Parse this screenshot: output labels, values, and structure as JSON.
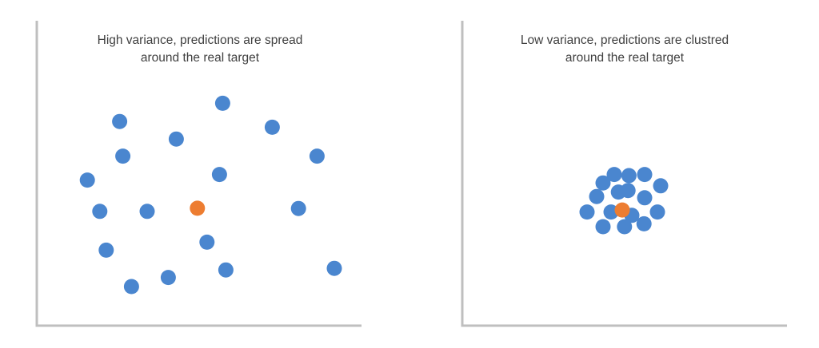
{
  "chart_data": [
    {
      "type": "scatter",
      "title_lines": [
        "High variance, predictions are spread",
        "around the real target"
      ],
      "xlabel": "",
      "ylabel": "",
      "grid": false,
      "xlim": [
        0,
        100
      ],
      "ylim": [
        0,
        100
      ],
      "series": [
        {
          "color": "#4a86cf",
          "points": [
            [
              58.1,
              92.3
            ],
            [
              25.9,
              84.1
            ],
            [
              73.6,
              81.5
            ],
            [
              43.6,
              76.2
            ],
            [
              26.9,
              68.5
            ],
            [
              87.6,
              68.5
            ],
            [
              57.1,
              60.2
            ],
            [
              15.8,
              57.7
            ],
            [
              81.8,
              44.9
            ],
            [
              19.7,
              43.6
            ],
            [
              34.5,
              43.6
            ],
            [
              53.2,
              29.7
            ],
            [
              21.7,
              26.1
            ],
            [
              93.0,
              17.9
            ],
            [
              59.1,
              17.2
            ],
            [
              41.1,
              13.8
            ],
            [
              29.6,
              9.7
            ]
          ]
        },
        {
          "color": "#ed7d31",
          "points": [
            [
              50.2,
              45.0
            ]
          ]
        }
      ]
    },
    {
      "type": "scatter",
      "title_lines": [
        "Low variance, predictions are clustred",
        "around the real target"
      ],
      "xlabel": "",
      "ylabel": "",
      "grid": false,
      "xlim": [
        0,
        100
      ],
      "ylim": [
        0,
        100
      ],
      "series": [
        {
          "color": "#4a86cf",
          "points": [
            [
              47.5,
              60.2
            ],
            [
              57.0,
              60.2
            ],
            [
              52.1,
              59.7
            ],
            [
              44.0,
              56.4
            ],
            [
              62.0,
              55.1
            ],
            [
              51.8,
              53.0
            ],
            [
              48.8,
              52.3
            ],
            [
              42.0,
              50.3
            ],
            [
              57.0,
              49.7
            ],
            [
              39.0,
              43.3
            ],
            [
              46.5,
              43.3
            ],
            [
              53.0,
              41.8
            ],
            [
              61.0,
              43.3
            ],
            [
              44.0,
              36.7
            ],
            [
              50.7,
              36.7
            ],
            [
              56.8,
              38.0
            ]
          ]
        },
        {
          "color": "#ed7d31",
          "points": [
            [
              50.0,
              44.2
            ]
          ]
        }
      ]
    }
  ]
}
